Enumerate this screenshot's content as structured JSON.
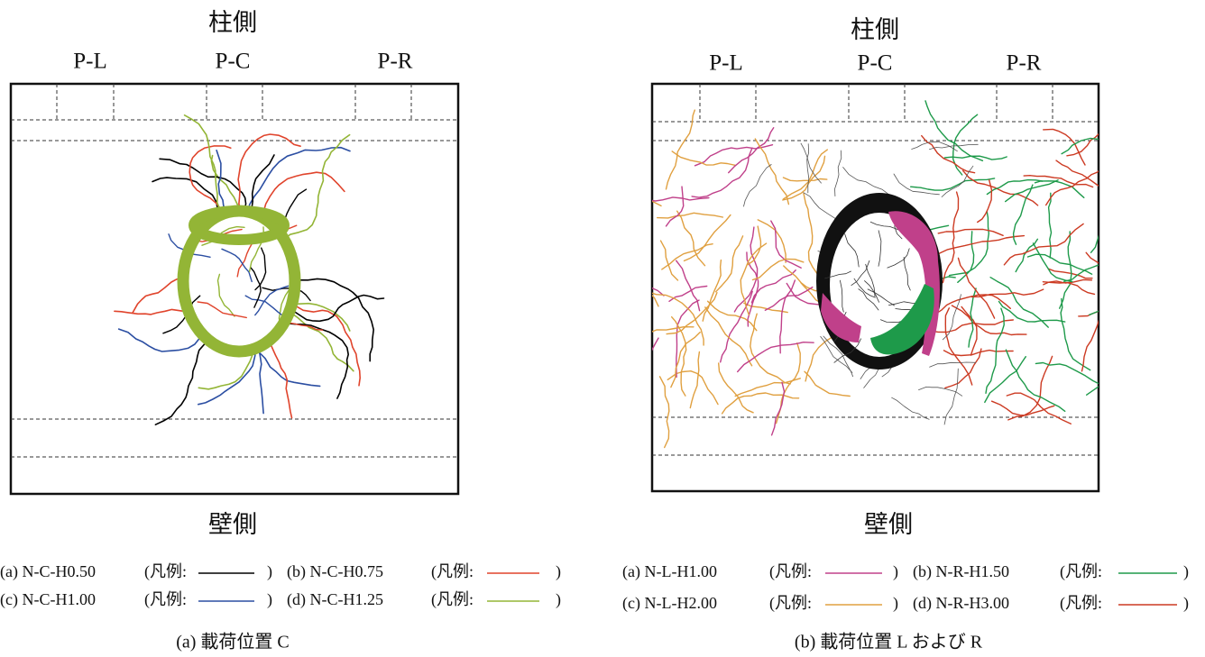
{
  "panels": [
    {
      "top_label": "柱側",
      "positions": [
        "P-L",
        "P-C",
        "P-R"
      ],
      "bottom_label": "壁側",
      "legend": [
        {
          "case": "(a) N-C-H0.50",
          "prefix": "(凡例:",
          "suffix": ")",
          "color": "#000000"
        },
        {
          "case": "(b) N-C-H0.75",
          "prefix": "(凡例:",
          "suffix": ")",
          "color": "#e0442c"
        },
        {
          "case": "(c) N-C-H1.00",
          "prefix": "(凡例:",
          "suffix": ")",
          "color": "#2b4ea2"
        },
        {
          "case": "(d) N-C-H1.25",
          "prefix": "(凡例:",
          "suffix": ")",
          "color": "#93b536"
        }
      ],
      "caption": "(a)  載荷位置  C"
    },
    {
      "top_label": "柱側",
      "positions": [
        "P-L",
        "P-C",
        "P-R"
      ],
      "bottom_label": "壁側",
      "legend": [
        {
          "case": "(a) N-L-H1.00",
          "prefix": "(凡例:",
          "suffix": ")",
          "color": "#c0408a"
        },
        {
          "case": "(b) N-R-H1.50",
          "prefix": "(凡例:",
          "suffix": ")",
          "color": "#1e9a4a"
        },
        {
          "case": "(c) N-L-H2.00",
          "prefix": "(凡例:",
          "suffix": ")",
          "color": "#e0a040"
        },
        {
          "case": "(d) N-R-H3.00",
          "prefix": "(凡例:",
          "suffix": ")",
          "color": "#cc3a22"
        }
      ],
      "caption": "(b)  載荷位置  L  および  R"
    }
  ]
}
